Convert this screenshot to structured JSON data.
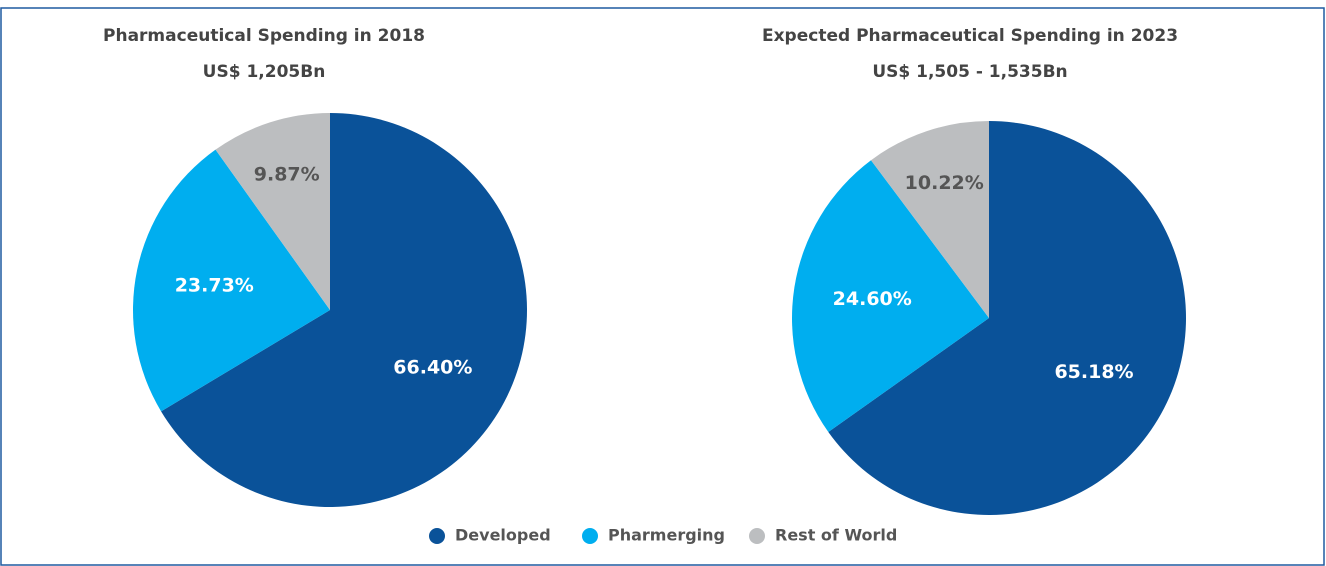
{
  "chart_data": [
    {
      "type": "pie",
      "title": "Pharmaceutical Spending in 2018",
      "subtitle": "US$ 1,205Bn",
      "categories": [
        "Developed",
        "Pharmerging",
        "Rest of World"
      ],
      "values": [
        66.4,
        23.73,
        9.87
      ],
      "value_labels": [
        "66.40%",
        "23.73%",
        "9.87%"
      ],
      "colors": [
        "#0a5299",
        "#00aeef",
        "#bcbec0"
      ]
    },
    {
      "type": "pie",
      "title": "Expected Pharmaceutical Spending in 2023",
      "subtitle": "US$ 1,505 - 1,535Bn",
      "categories": [
        "Developed",
        "Pharmerging",
        "Rest of World"
      ],
      "values": [
        65.18,
        24.6,
        10.22
      ],
      "value_labels": [
        "65.18%",
        "24.60%",
        "10.22%"
      ],
      "colors": [
        "#0a5299",
        "#00aeef",
        "#bcbec0"
      ]
    }
  ]
}
